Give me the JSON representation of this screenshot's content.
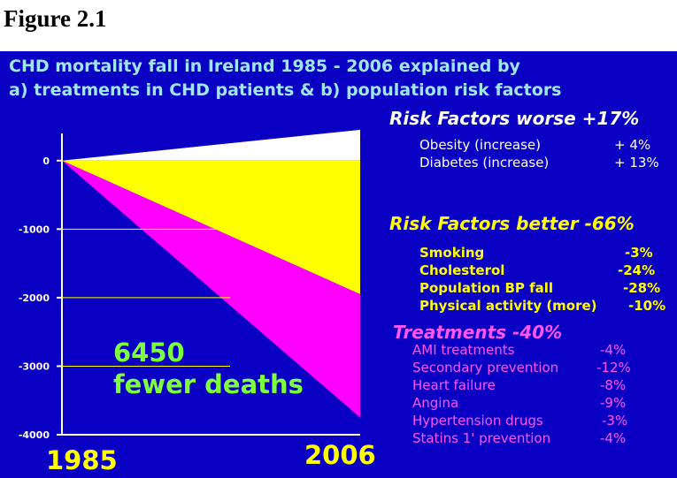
{
  "figure_label": "Figure 2.1",
  "title_lines": [
    "CHD mortality fall in Ireland 1985 - 2006 explained by",
    "a) treatments in CHD patients &  b) population risk factors"
  ],
  "colors": {
    "background": "#0a00c4",
    "title": "#9ee6f4",
    "worse_area": "#ffffff",
    "better_area": "#ffff00",
    "treatments_area": "#ff00ff",
    "worse_text": "#ffffff",
    "better_text": "#ffff00",
    "treatments_text": "#ff55ff",
    "annotation": "#7dff3c",
    "axis": "#ffffff"
  },
  "chart_data": {
    "type": "area",
    "x": [
      1985,
      2006
    ],
    "x_tick_labels": [
      "1985",
      "2006"
    ],
    "ylim": [
      -4000,
      500
    ],
    "y_ticks": [
      0,
      -1000,
      -2000,
      -3000,
      -4000
    ],
    "y_tick_labels": [
      "0",
      "-1000",
      "-2000",
      "-3000",
      "-4000"
    ],
    "series": [
      {
        "name": "Risk Factors worse +17%",
        "values": [
          0,
          450
        ]
      },
      {
        "name": "Risk Factors better -66%",
        "values": [
          0,
          -1950
        ]
      },
      {
        "name": "Treatments -40%",
        "values": [
          0,
          -3750
        ]
      }
    ],
    "annotation_lines": [
      "6450",
      "fewer deaths"
    ]
  },
  "sections": [
    {
      "heading": "Risk Factors worse +17%",
      "color_key": "worse_text",
      "items": [
        {
          "label": "Obesity (increase)",
          "value": "+ 4%"
        },
        {
          "label": "Diabetes (increase)",
          "value": "+ 13%"
        }
      ]
    },
    {
      "heading": "Risk Factors better -66%",
      "color_key": "better_text",
      "items": [
        {
          "label": "Smoking",
          "value": "-3%"
        },
        {
          "label": "Cholesterol",
          "value": "-24%"
        },
        {
          "label": "Population BP fall",
          "value": "-28%"
        },
        {
          "label": "Physical activity (more)",
          "value": "-10%"
        }
      ]
    },
    {
      "heading": "Treatments -40%",
      "color_key": "treatments_text",
      "items": [
        {
          "label": "AMI treatments",
          "value": "-4%"
        },
        {
          "label": "Secondary prevention",
          "value": "-12%"
        },
        {
          "label": "Heart failure",
          "value": "-8%"
        },
        {
          "label": "Angina",
          "value": "-9%"
        },
        {
          "label": "Hypertension drugs",
          "value": "-3%"
        },
        {
          "label": "Statins 1' prevention",
          "value": "-4%"
        }
      ]
    }
  ]
}
